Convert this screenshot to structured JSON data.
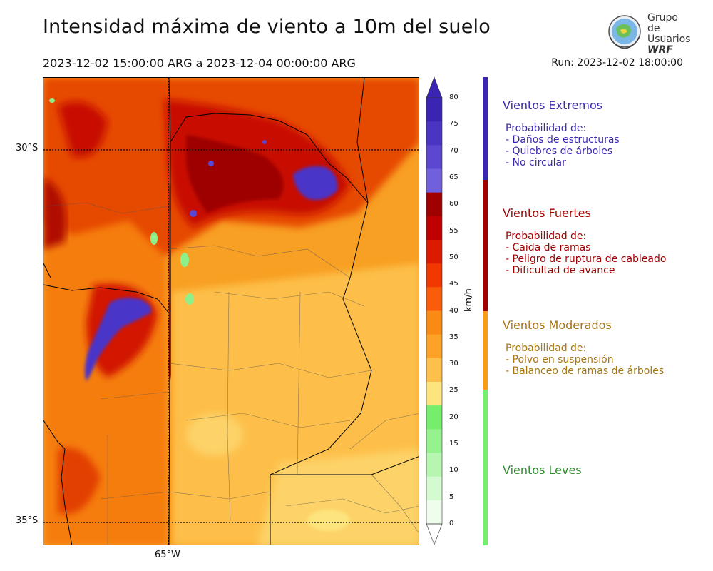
{
  "title": "Intensidad máxima de viento a 10m del suelo",
  "period": "2023-12-02 15:00:00 ARG  a  2023-12-04 00:00:00 ARG",
  "run": "Run: 2023-12-02 18:00:00",
  "logo": {
    "line1": "Grupo de",
    "line2": "Usuarios",
    "line3": "WRF"
  },
  "map": {
    "lat_labels": [
      "30°S",
      "35°S"
    ],
    "lon_labels": [
      "65°W"
    ]
  },
  "colorbar": {
    "unit": "km/h",
    "ticks": [
      "80",
      "75",
      "70",
      "65",
      "60",
      "55",
      "50",
      "45",
      "40",
      "35",
      "30",
      "25",
      "20",
      "15",
      "10",
      "5",
      "0"
    ],
    "colors": {
      "extreme": [
        "#3a24b4",
        "#4a34c4",
        "#5c48d0",
        "#7060dc"
      ],
      "strong": [
        "#a00000",
        "#c00000",
        "#dc1a00",
        "#f03800",
        "#fb5c0a"
      ],
      "moderate": [
        "#fb8a14",
        "#fca227",
        "#fdc04a",
        "#fde47e"
      ],
      "light": [
        "#74ee6c",
        "#96f28e",
        "#b6f6b0",
        "#d4fad0",
        "#eefdec"
      ]
    }
  },
  "categories": [
    {
      "title": "Vientos Extremos",
      "color": "#3a28b0",
      "lines": [
        "Probabilidad de:",
        "- Daños de estructuras",
        "- Quiebres de árboles",
        "- No circular"
      ]
    },
    {
      "title": "Vientos Fuertes",
      "color": "#a00000",
      "lines": [
        "Probabilidad de:",
        "- Caida de ramas",
        "- Peligro de ruptura de cableado",
        "- Dificultad de avance"
      ]
    },
    {
      "title": "Vientos Moderados",
      "color": "#a8750e",
      "lines": [
        "Probabilidad de:",
        "- Polvo en suspensión",
        "- Balanceo de ramas de árboles"
      ]
    },
    {
      "title": "Vientos Leves",
      "color": "#2e8b2e",
      "lines": []
    }
  ]
}
